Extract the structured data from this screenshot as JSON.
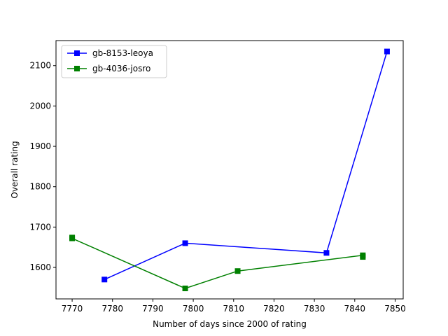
{
  "chart_data": {
    "type": "line",
    "xlabel": "Number of days since 2000 of rating",
    "ylabel": "Overall rating",
    "xlim": [
      7766,
      7852
    ],
    "ylim": [
      1522,
      2162
    ],
    "x_ticks": [
      7770,
      7780,
      7790,
      7800,
      7810,
      7820,
      7830,
      7840,
      7850
    ],
    "y_ticks": [
      1600,
      1700,
      1800,
      1900,
      2000,
      2100
    ],
    "grid": false,
    "legend_position": "top-left",
    "series": [
      {
        "name": "gb-8153-leoya",
        "color": "#0000ff",
        "marker": "square",
        "points": [
          [
            7778,
            1570
          ],
          [
            7798,
            1660
          ],
          [
            7833,
            1636
          ],
          [
            7848,
            2135
          ]
        ]
      },
      {
        "name": "gb-4036-josro",
        "color": "#008000",
        "marker": "square",
        "points": [
          [
            7770,
            1674
          ],
          [
            7770,
            1672
          ],
          [
            7798,
            1548
          ],
          [
            7811,
            1591
          ],
          [
            7842,
            1630
          ],
          [
            7842,
            1626
          ]
        ]
      }
    ]
  }
}
